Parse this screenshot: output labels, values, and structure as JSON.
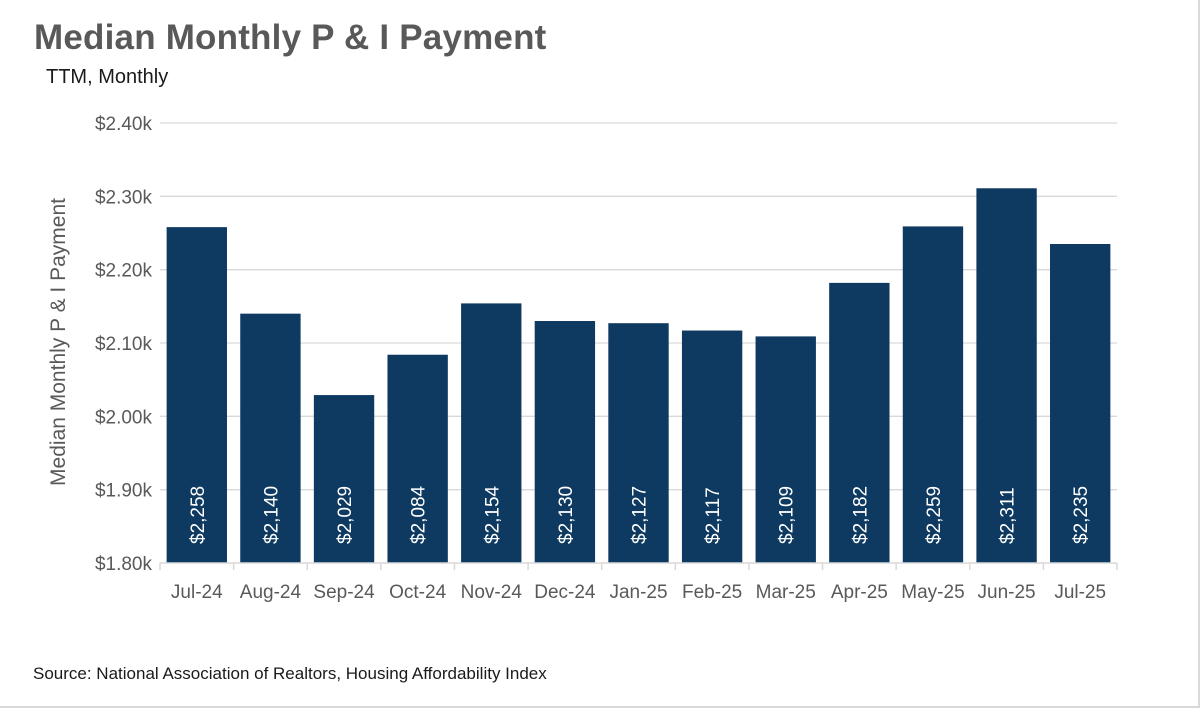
{
  "header": {
    "title": "Median Monthly P & I Payment",
    "subtitle": "TTM, Monthly"
  },
  "footer": {
    "source": "Source: National Association of Realtors, Housing Affordability Index"
  },
  "colors": {
    "bar": "#0e3a62",
    "grid": "#d9d9d9",
    "text": "#595959"
  },
  "chart_data": {
    "type": "bar",
    "title": "Median Monthly P & I Payment",
    "subtitle": "TTM, Monthly",
    "xlabel": "",
    "ylabel": "Median Monthly P & I Payment",
    "categories": [
      "Jul-24",
      "Aug-24",
      "Sep-24",
      "Oct-24",
      "Nov-24",
      "Dec-24",
      "Jan-25",
      "Feb-25",
      "Mar-25",
      "Apr-25",
      "May-25",
      "Jun-25",
      "Jul-25"
    ],
    "values": [
      2258,
      2140,
      2029,
      2084,
      2154,
      2130,
      2127,
      2117,
      2109,
      2182,
      2259,
      2311,
      2235
    ],
    "data_labels": [
      "$2,258",
      "$2,140",
      "$2,029",
      "$2,084",
      "$2,154",
      "$2,130",
      "$2,127",
      "$2,117",
      "$2,109",
      "$2,182",
      "$2,259",
      "$2,311",
      "$2,235"
    ],
    "ylim": [
      1800,
      2400
    ],
    "yticks": [
      1800,
      1900,
      2000,
      2100,
      2200,
      2300,
      2400
    ],
    "ytick_labels": [
      "$1.80k",
      "$1.90k",
      "$2.00k",
      "$2.10k",
      "$2.20k",
      "$2.30k",
      "$2.40k"
    ],
    "grid": true,
    "legend": "none"
  }
}
